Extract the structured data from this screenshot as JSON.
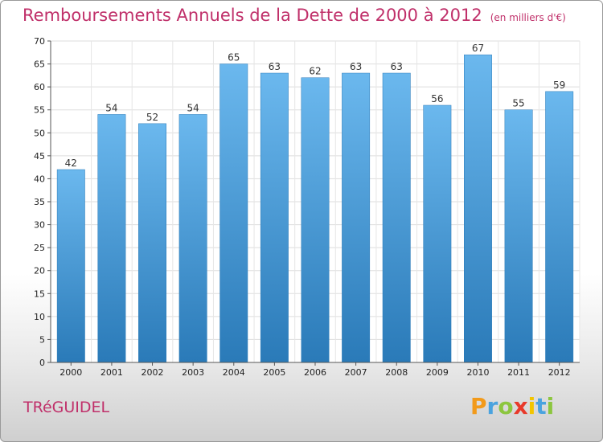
{
  "title": "Remboursements Annuels de la Dette de 2000 à 2012",
  "unit": "(en milliers d'€)",
  "commune": "TRéGUIDEL",
  "brand": {
    "letters": [
      "P",
      "r",
      "o",
      "x",
      "i",
      "t",
      "i"
    ],
    "colors": [
      "#f29a1a",
      "#4aa3df",
      "#8cc63f",
      "#e8392a",
      "#f2c500",
      "#4aa3df",
      "#8cc63f"
    ]
  },
  "colors": {
    "bar_light": "#6bb8ee",
    "bar_dark": "#2a7ab8",
    "title": "#c0306a"
  },
  "chart_data": {
    "type": "bar",
    "categories": [
      "2000",
      "2001",
      "2002",
      "2003",
      "2004",
      "2005",
      "2006",
      "2007",
      "2008",
      "2009",
      "2010",
      "2011",
      "2012"
    ],
    "values": [
      42,
      54,
      52,
      54,
      65,
      63,
      62,
      63,
      63,
      56,
      67,
      55,
      59
    ],
    "title": "Remboursements Annuels de la Dette de 2000 à 2012",
    "ylabel": "",
    "xlabel": "",
    "ylim": [
      0,
      70
    ],
    "yticks": [
      0,
      5,
      10,
      15,
      20,
      25,
      30,
      35,
      40,
      45,
      50,
      55,
      60,
      65,
      70
    ],
    "grid": true
  }
}
